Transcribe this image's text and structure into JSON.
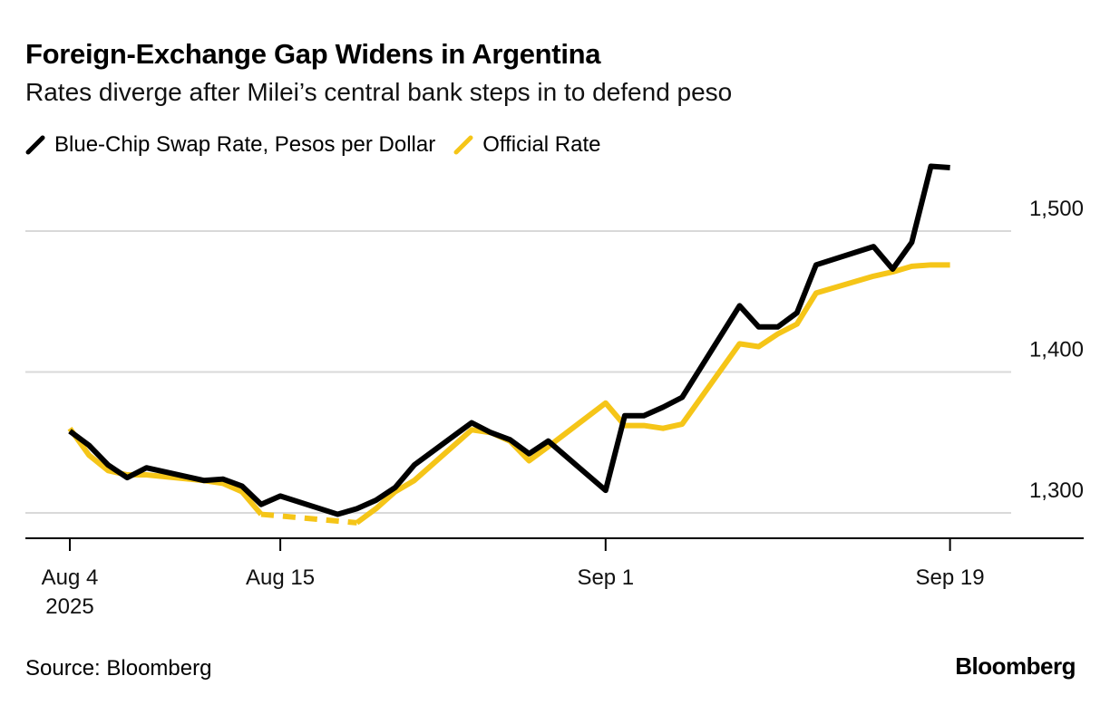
{
  "chart_data": {
    "type": "line",
    "title": "Foreign-Exchange Gap Widens in Argentina",
    "subtitle": "Rates diverge after Milei’s central bank steps in to defend peso",
    "x": [
      "2025-08-04",
      "2025-08-05",
      "2025-08-06",
      "2025-08-07",
      "2025-08-08",
      "2025-08-11",
      "2025-08-12",
      "2025-08-13",
      "2025-08-14",
      "2025-08-15",
      "2025-08-18",
      "2025-08-19",
      "2025-08-20",
      "2025-08-21",
      "2025-08-22",
      "2025-08-25",
      "2025-08-26",
      "2025-08-27",
      "2025-08-28",
      "2025-08-29",
      "2025-09-01",
      "2025-09-02",
      "2025-09-03",
      "2025-09-04",
      "2025-09-05",
      "2025-09-08",
      "2025-09-09",
      "2025-09-10",
      "2025-09-11",
      "2025-09-12",
      "2025-09-15",
      "2025-09-16",
      "2025-09-17",
      "2025-09-18",
      "2025-09-19"
    ],
    "series": [
      {
        "name": "Blue-Chip Swap Rate, Pesos per Dollar",
        "color": "#000000",
        "values": [
          1358,
          1348,
          1334,
          1325,
          1332,
          1323,
          1324,
          1319,
          1306,
          1312,
          1299,
          1303,
          1309,
          1318,
          1334,
          1364,
          1357,
          1352,
          1342,
          1351,
          1316,
          1369,
          1369,
          1375,
          1382,
          1447,
          1432,
          1432,
          1442,
          1476,
          1489,
          1473,
          1492,
          1546,
          1545
        ]
      },
      {
        "name": "Official Rate",
        "color": "#F5C518",
        "gap_style": "dashed",
        "values": [
          1360,
          1341,
          1330,
          1327,
          1327,
          1323,
          1321,
          1315,
          1299,
          null,
          null,
          1293,
          1303,
          1315,
          1323,
          1359,
          1357,
          1351,
          1337,
          1347,
          1378,
          1362,
          1362,
          1360,
          1363,
          1420,
          1418,
          1427,
          1434,
          1456,
          1468,
          1471,
          1475,
          1476,
          1476
        ]
      }
    ],
    "y_ticks": [
      "1,300",
      "1,400",
      "1,500"
    ],
    "y_tick_values": [
      1300,
      1400,
      1500
    ],
    "x_ticks": [
      {
        "date": "2025-08-04",
        "label": "Aug 4",
        "sublabel": "2025"
      },
      {
        "date": "2025-08-15",
        "label": "Aug 15"
      },
      {
        "date": "2025-09-01",
        "label": "Sep 1"
      },
      {
        "date": "2025-09-19",
        "label": "Sep 19"
      }
    ],
    "ylim": [
      1282,
      1560
    ],
    "y_axis_side": "right",
    "grid": true,
    "legend_position": "top-left"
  },
  "source": "Source: Bloomberg",
  "logo": "Bloomberg"
}
